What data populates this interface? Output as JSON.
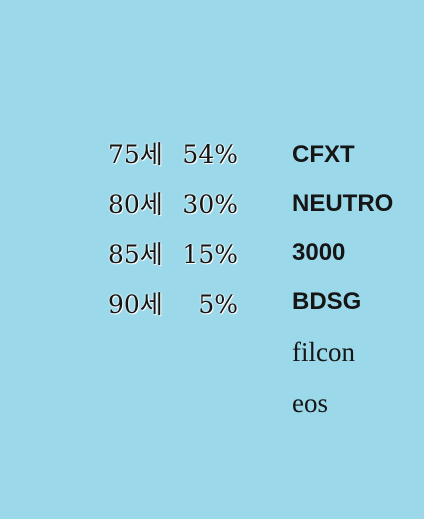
{
  "age_rates": [
    {
      "age": "75세",
      "percent": "54%"
    },
    {
      "age": "80세",
      "percent": "30%"
    },
    {
      "age": "85세",
      "percent": "15%"
    },
    {
      "age": "90세",
      "percent": "5%"
    }
  ],
  "keywords": [
    "CFXT",
    "NEUTRO",
    "3000",
    "BDSG",
    "filcon",
    "eos"
  ],
  "colors": {
    "background": "#9bd9ea",
    "text": "#151515"
  }
}
